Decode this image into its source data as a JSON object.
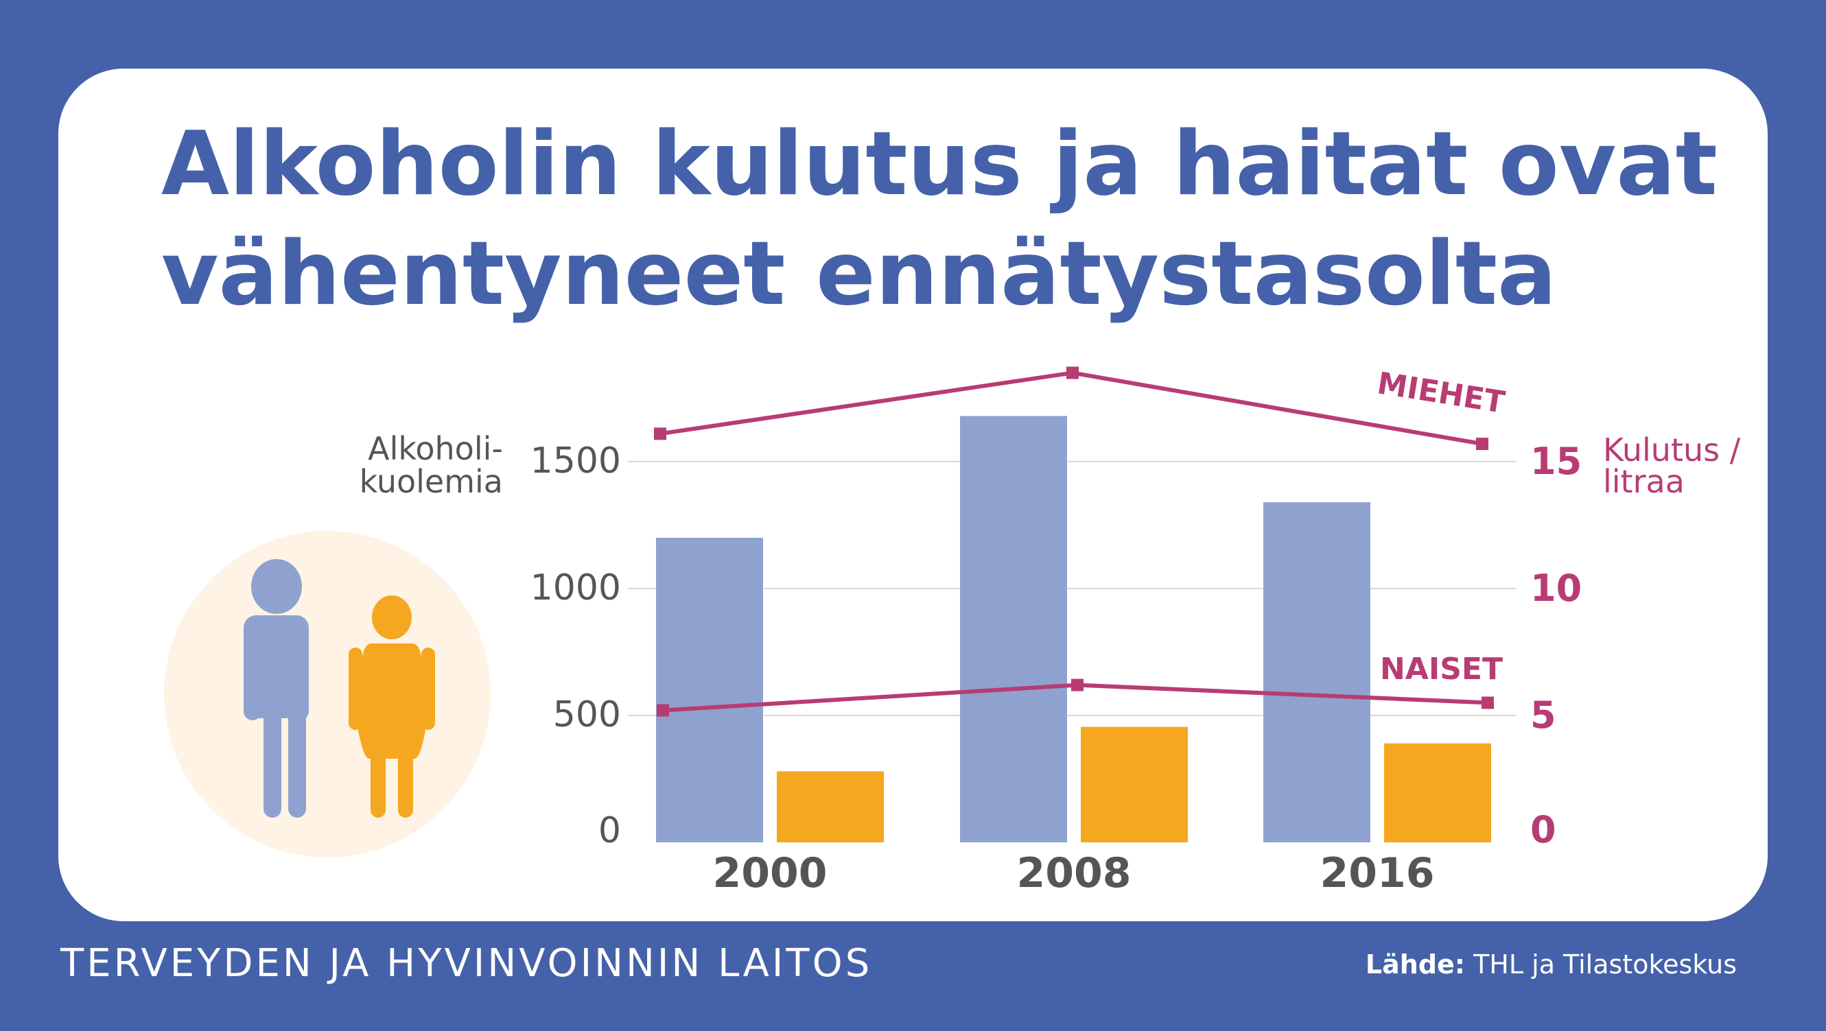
{
  "title_lines": [
    "Alkoholin kulutus ja haitat ovat",
    "vähentyneet ennätystasolta"
  ],
  "footer": {
    "organization": "TERVEYDEN JA HYVINVOINNIN LAITOS",
    "source_label": "Lähde:",
    "source_text": "THL ja Tilastokeskus"
  },
  "icon": "people-icon",
  "colors": {
    "background": "#4561a9",
    "men": "#8fa2cf",
    "women": "#f5a71f",
    "line": "#b83c74",
    "axis_text": "#555555",
    "circle": "#fef3e4"
  },
  "chart_data": {
    "type": "bar",
    "categories": [
      "2000",
      "2008",
      "2016"
    ],
    "left_axis": {
      "label_lines": [
        "Alkoholi-",
        "kuolemia"
      ],
      "ticks": [
        0,
        500,
        1000,
        1500
      ],
      "range": [
        0,
        1500
      ]
    },
    "right_axis": {
      "label_lines": [
        "Kulutus /",
        "litraa"
      ],
      "ticks": [
        0,
        5,
        10,
        15
      ],
      "range": [
        0,
        15
      ]
    },
    "bar_series": [
      {
        "id": "men",
        "values": [
          1200,
          1680,
          1340
        ]
      },
      {
        "id": "women",
        "values": [
          280,
          455,
          390
        ]
      }
    ],
    "line_series": [
      {
        "name": "MIEHET",
        "values": [
          16.1,
          18.5,
          15.7
        ]
      },
      {
        "name": "NAISET",
        "values": [
          5.2,
          6.2,
          5.5
        ]
      }
    ]
  }
}
